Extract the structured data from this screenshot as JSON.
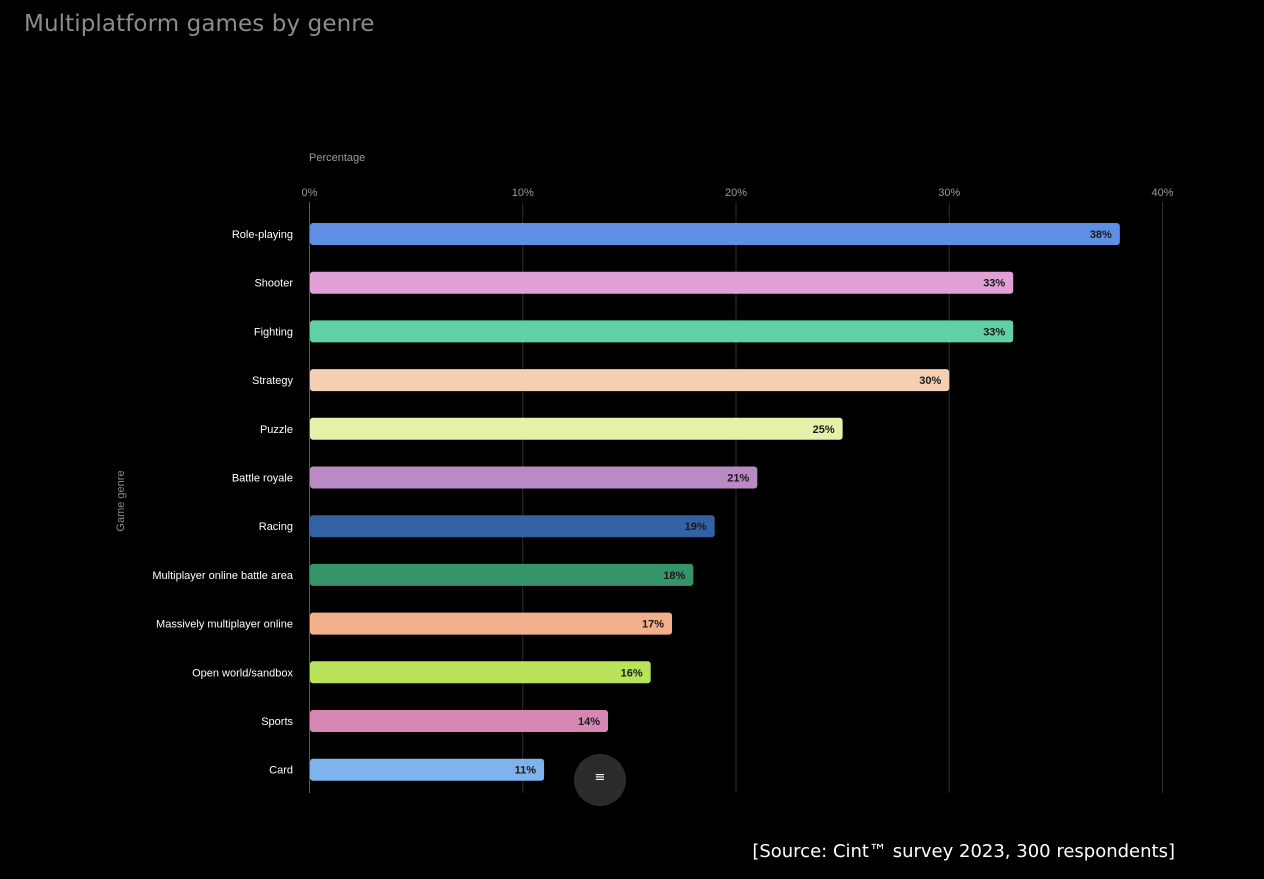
{
  "page": {
    "title": "Multiplatform games by genre",
    "source": "[Source: Cint™ survey 2023, 300 respondents]",
    "menu_icon": "hamburger-menu-icon",
    "menu_glyph": "≡"
  },
  "chart_data": {
    "type": "bar",
    "orientation": "horizontal",
    "title": "Multiplatform games by genre",
    "xlabel": "Percentage",
    "ylabel": "Game genre",
    "xlim": [
      0,
      40
    ],
    "xticks": [
      0,
      10,
      20,
      30,
      40
    ],
    "tick_suffix": "%",
    "grid": true,
    "categories": [
      "Role-playing",
      "Shooter",
      "Fighting",
      "Strategy",
      "Puzzle",
      "Battle royale",
      "Racing",
      "Multiplayer online battle area",
      "Massively multiplayer online",
      "Open world/sandbox",
      "Sports",
      "Card"
    ],
    "values": [
      38,
      33,
      33,
      30,
      25,
      21,
      19,
      18,
      17,
      16,
      14,
      11
    ],
    "data_labels": [
      "38%",
      "33%",
      "33%",
      "30%",
      "25%",
      "21%",
      "19%",
      "18%",
      "17%",
      "16%",
      "14%",
      "11%"
    ],
    "colors": [
      "#5f8fe4",
      "#e2a1d6",
      "#60d0a5",
      "#f4cfb2",
      "#e6f0a8",
      "#b98ac4",
      "#3262a3",
      "#36946a",
      "#f2b08b",
      "#b8e35a",
      "#d687b3",
      "#7fb3ec"
    ]
  }
}
